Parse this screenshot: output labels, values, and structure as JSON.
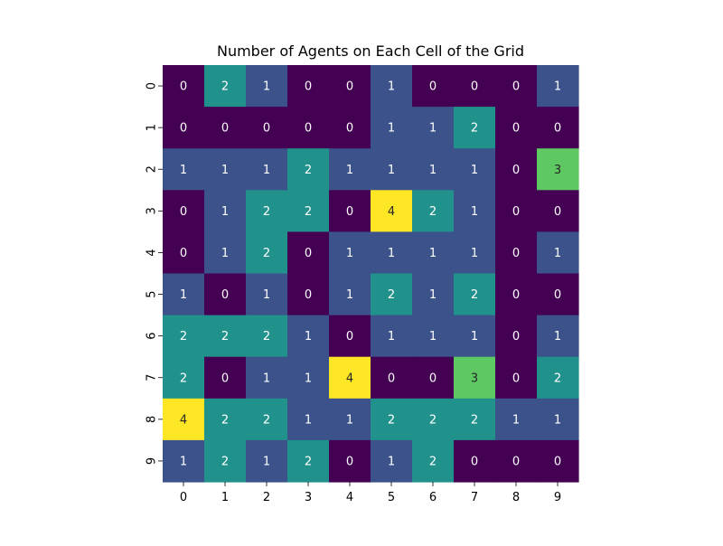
{
  "chart_data": {
    "type": "heatmap",
    "title": "Number of Agents on Each Cell of the Grid",
    "xlabel": "",
    "ylabel": "",
    "x_tick_labels": [
      "0",
      "1",
      "2",
      "3",
      "4",
      "5",
      "6",
      "7",
      "8",
      "9"
    ],
    "y_tick_labels": [
      "0",
      "1",
      "2",
      "3",
      "4",
      "5",
      "6",
      "7",
      "8",
      "9"
    ],
    "values": [
      [
        0,
        2,
        1,
        0,
        0,
        1,
        0,
        0,
        0,
        1
      ],
      [
        0,
        0,
        0,
        0,
        0,
        1,
        1,
        2,
        0,
        0
      ],
      [
        1,
        1,
        1,
        2,
        1,
        1,
        1,
        1,
        0,
        3
      ],
      [
        0,
        1,
        2,
        2,
        0,
        4,
        2,
        1,
        0,
        0
      ],
      [
        0,
        1,
        2,
        0,
        1,
        1,
        1,
        1,
        0,
        1
      ],
      [
        1,
        0,
        1,
        0,
        1,
        2,
        1,
        2,
        0,
        0
      ],
      [
        2,
        2,
        2,
        1,
        0,
        1,
        1,
        1,
        0,
        1
      ],
      [
        2,
        0,
        1,
        1,
        4,
        0,
        0,
        3,
        0,
        2
      ],
      [
        4,
        2,
        2,
        1,
        1,
        2,
        2,
        2,
        1,
        1
      ],
      [
        1,
        2,
        1,
        2,
        0,
        1,
        2,
        0,
        0,
        0
      ]
    ],
    "value_range": [
      0,
      4
    ],
    "annotated": true,
    "colormap": {
      "name": "viridis",
      "level_colors": [
        "#440154",
        "#3b528b",
        "#21918c",
        "#5ec962",
        "#fde725"
      ]
    },
    "grid": false,
    "legend": "none"
  }
}
